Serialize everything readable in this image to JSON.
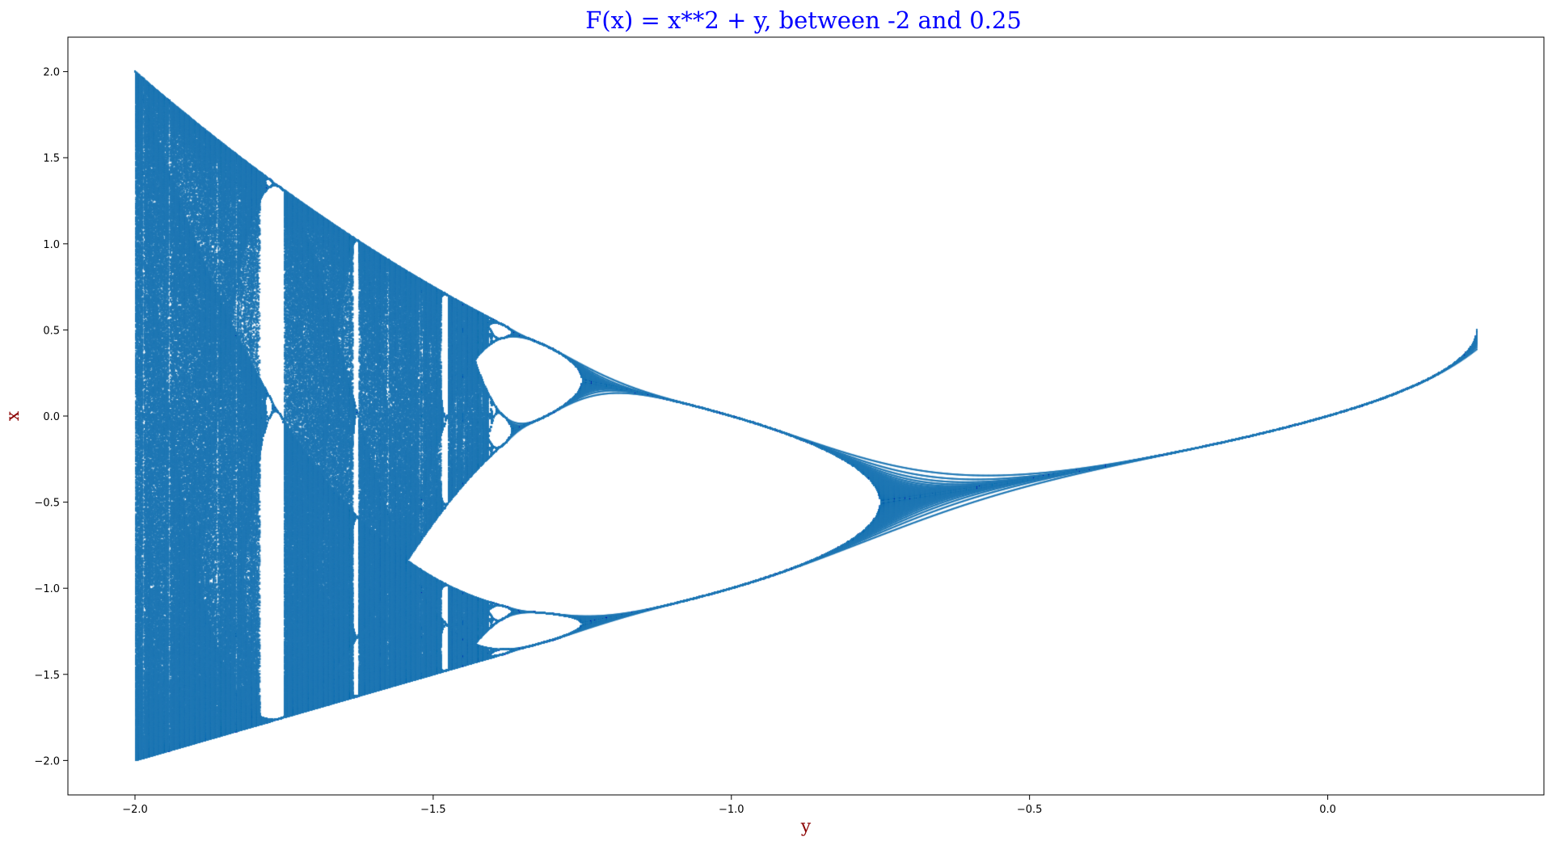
{
  "chart_data": {
    "type": "scatter",
    "title": "F(x) = x**2 + y, between -2 and 0.25",
    "xlabel": "y",
    "ylabel": "x",
    "xlim": [
      -2.1125,
      0.3625
    ],
    "ylim": [
      -2.2,
      2.2
    ],
    "xticks": [
      -2.0,
      -1.5,
      -1.0,
      -0.5,
      0.0
    ],
    "xtick_labels": [
      "−2.0",
      "−1.5",
      "−1.0",
      "−0.5",
      "0.0"
    ],
    "yticks": [
      -2.0,
      -1.5,
      -1.0,
      -0.5,
      0.0,
      0.5,
      1.0,
      1.5,
      2.0
    ],
    "ytick_labels": [
      "−2.0",
      "−1.5",
      "−1.0",
      "−0.5",
      "0.0",
      "0.5",
      "1.0",
      "1.5",
      "2.0"
    ],
    "grid": false,
    "colors": {
      "points": "#1f77b4",
      "title": "#0000ff",
      "axis_label": "#8b0000"
    },
    "generator": {
      "map": "x -> x**2 + y",
      "y_range": [
        -2.0,
        0.25
      ],
      "x0": 0.0
    }
  }
}
